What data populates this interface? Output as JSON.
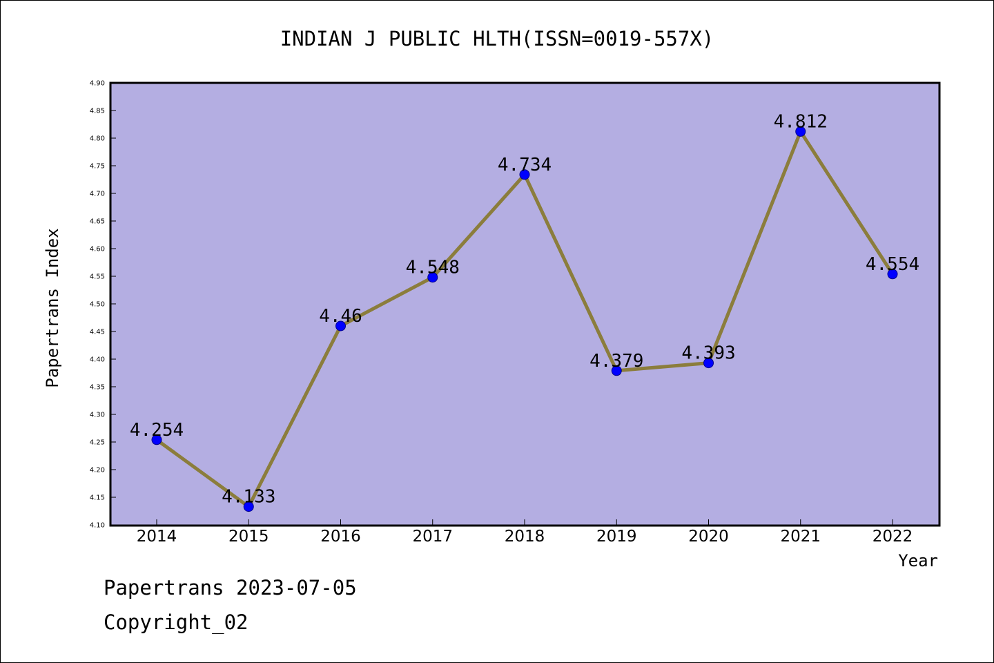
{
  "chart_data": {
    "type": "line",
    "title": "INDIAN J PUBLIC HLTH(ISSN=0019-557X)",
    "xlabel": "Year",
    "ylabel": "Papertrans Index",
    "x": [
      "2014",
      "2015",
      "2016",
      "2017",
      "2018",
      "2019",
      "2020",
      "2021",
      "2022"
    ],
    "values": [
      4.254,
      4.133,
      4.46,
      4.548,
      4.734,
      4.379,
      4.393,
      4.812,
      4.554
    ],
    "data_labels": [
      "4.254",
      "4.133",
      "4.46",
      "4.548",
      "4.734",
      "4.379",
      "4.393",
      "4.812",
      "4.554"
    ],
    "ylim": [
      4.1,
      4.9
    ],
    "yticks": [
      "4.10",
      "4.15",
      "4.20",
      "4.25",
      "4.30",
      "4.35",
      "4.40",
      "4.45",
      "4.50",
      "4.55",
      "4.60",
      "4.65",
      "4.70",
      "4.75",
      "4.80",
      "4.85",
      "4.90"
    ],
    "grid": false,
    "colors": {
      "plot_background": "#b4aee2",
      "line": "#8b7d3c",
      "marker": "#0000ff"
    }
  },
  "footer": {
    "line1": "Papertrans 2023-07-05",
    "line2": "Copyright_02"
  }
}
